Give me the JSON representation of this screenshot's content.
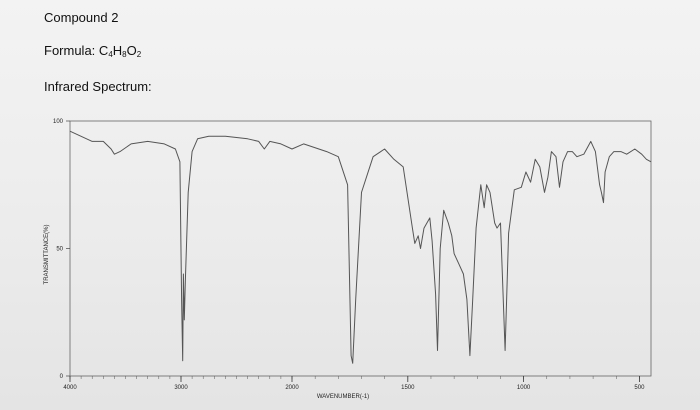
{
  "header": {
    "title": "Compound 2",
    "formula_label": "Formula:",
    "formula_parts": [
      {
        "text": "C",
        "sub": "4"
      },
      {
        "text": "H",
        "sub": "8"
      },
      {
        "text": "O",
        "sub": "2"
      }
    ],
    "spectrum_label": "Infrared Spectrum:"
  },
  "chart_data": {
    "type": "line",
    "xlabel": "WAVENUMBER(-1)",
    "ylabel": "TRANSMITTANCE(%)",
    "x_reversed": true,
    "ylim": [
      0,
      100
    ],
    "y_ticks": [
      {
        "value": 100,
        "label": "100"
      },
      {
        "value": 50,
        "label": "50"
      },
      {
        "value": 0,
        "label": "0"
      }
    ],
    "x_ticks": [
      {
        "value": 4000,
        "label": "4000"
      },
      {
        "value": 3000,
        "label": "3000"
      },
      {
        "value": 2000,
        "label": "2000"
      },
      {
        "value": 1500,
        "label": "1500"
      },
      {
        "value": 1000,
        "label": "1000"
      },
      {
        "value": 500,
        "label": "500"
      }
    ],
    "series": [
      {
        "color": "#555555",
        "points": [
          [
            4000,
            96
          ],
          [
            3900,
            94
          ],
          [
            3800,
            92
          ],
          [
            3700,
            92
          ],
          [
            3630,
            89
          ],
          [
            3600,
            87
          ],
          [
            3550,
            88
          ],
          [
            3450,
            91
          ],
          [
            3300,
            92
          ],
          [
            3150,
            91
          ],
          [
            3050,
            89
          ],
          [
            3010,
            84
          ],
          [
            2995,
            30
          ],
          [
            2985,
            6
          ],
          [
            2978,
            40
          ],
          [
            2970,
            22
          ],
          [
            2960,
            38
          ],
          [
            2935,
            72
          ],
          [
            2900,
            88
          ],
          [
            2850,
            93
          ],
          [
            2750,
            94
          ],
          [
            2600,
            94
          ],
          [
            2400,
            93
          ],
          [
            2300,
            92
          ],
          [
            2250,
            89
          ],
          [
            2200,
            92
          ],
          [
            2100,
            91
          ],
          [
            2000,
            89
          ],
          [
            1950,
            91
          ],
          [
            1850,
            88
          ],
          [
            1800,
            86
          ],
          [
            1760,
            75
          ],
          [
            1745,
            8
          ],
          [
            1738,
            5
          ],
          [
            1725,
            30
          ],
          [
            1700,
            72
          ],
          [
            1650,
            86
          ],
          [
            1600,
            89
          ],
          [
            1560,
            85
          ],
          [
            1520,
            82
          ],
          [
            1480,
            58
          ],
          [
            1470,
            52
          ],
          [
            1455,
            55
          ],
          [
            1445,
            50
          ],
          [
            1430,
            58
          ],
          [
            1405,
            62
          ],
          [
            1395,
            53
          ],
          [
            1380,
            32
          ],
          [
            1372,
            10
          ],
          [
            1360,
            50
          ],
          [
            1345,
            65
          ],
          [
            1325,
            60
          ],
          [
            1310,
            55
          ],
          [
            1300,
            48
          ],
          [
            1280,
            44
          ],
          [
            1260,
            40
          ],
          [
            1245,
            30
          ],
          [
            1232,
            8
          ],
          [
            1220,
            30
          ],
          [
            1205,
            58
          ],
          [
            1185,
            75
          ],
          [
            1170,
            66
          ],
          [
            1160,
            75
          ],
          [
            1145,
            72
          ],
          [
            1125,
            60
          ],
          [
            1115,
            58
          ],
          [
            1100,
            60
          ],
          [
            1080,
            10
          ],
          [
            1065,
            56
          ],
          [
            1040,
            73
          ],
          [
            1010,
            74
          ],
          [
            990,
            80
          ],
          [
            970,
            76
          ],
          [
            950,
            85
          ],
          [
            930,
            82
          ],
          [
            910,
            72
          ],
          [
            895,
            78
          ],
          [
            880,
            88
          ],
          [
            860,
            86
          ],
          [
            845,
            74
          ],
          [
            830,
            84
          ],
          [
            810,
            88
          ],
          [
            790,
            88
          ],
          [
            770,
            86
          ],
          [
            740,
            87
          ],
          [
            710,
            92
          ],
          [
            690,
            88
          ],
          [
            672,
            75
          ],
          [
            664,
            72
          ],
          [
            655,
            68
          ],
          [
            648,
            80
          ],
          [
            630,
            86
          ],
          [
            610,
            88
          ],
          [
            580,
            88
          ],
          [
            555,
            87
          ],
          [
            520,
            89
          ],
          [
            490,
            87
          ],
          [
            470,
            85
          ],
          [
            450,
            84
          ]
        ]
      }
    ]
  }
}
